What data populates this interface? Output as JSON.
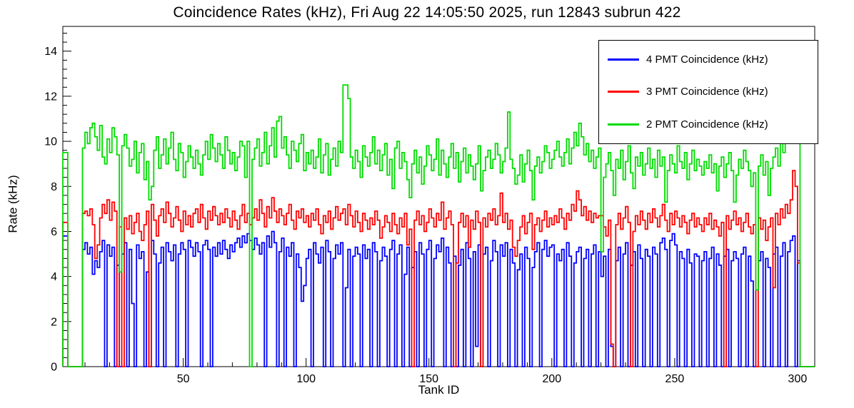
{
  "title": "Coincidence Rates (kHz), Fri Aug 22 14:05:50 2025, run 12843 subrun 422",
  "chart_data": {
    "type": "line",
    "subtype": "step-histogram",
    "title": "Coincidence Rates (kHz), Fri Aug 22 14:05:50 2025, run 12843 subrun 422",
    "xlabel": "Tank ID",
    "ylabel": "Rate (kHz)",
    "xlim": [
      1,
      307
    ],
    "ylim": [
      0,
      15.1
    ],
    "xticks_major": [
      50,
      100,
      150,
      200,
      250,
      300
    ],
    "xtick_minor_step": 10,
    "yticks_major": [
      0,
      2,
      4,
      6,
      8,
      10,
      12,
      14
    ],
    "ytick_minor_step": 0.4,
    "grid": false,
    "legend_position": "top-right",
    "frame_color": "#000000",
    "series": [
      {
        "key": "4pmt",
        "name": "4 PMT Coincidence (kHz)",
        "color": "#0000ff",
        "values": [
          5.8,
          5.8,
          0,
          0,
          0,
          0,
          0,
          0,
          5.2,
          5.5,
          5.0,
          5.3,
          4.1,
          4.7,
          4.4,
          5.1,
          5.6,
          0,
          5.4,
          4.9,
          5.3,
          0,
          4.5,
          0,
          5.0,
          5.5,
          0,
          5.2,
          2.8,
          0,
          5.4,
          4.8,
          5.1,
          0,
          4.2,
          0,
          5.6,
          5.0,
          0,
          4.6,
          5.3,
          0,
          5.5,
          5.1,
          4.7,
          5.4,
          0,
          5.0,
          5.5,
          5.2,
          0,
          5.6,
          5.3,
          4.9,
          5.5,
          5.1,
          0,
          5.4,
          5.6,
          5.2,
          0,
          5.3,
          4.9,
          5.5,
          5.0,
          5.6,
          5.2,
          4.8,
          5.4,
          5.1,
          5.5,
          5.7,
          5.3,
          5.8,
          5.5,
          5.9,
          5.6,
          5.2,
          5.7,
          5.4,
          5.0,
          5.5,
          0,
          5.8,
          5.3,
          6.0,
          5.5,
          0,
          5.1,
          5.7,
          0,
          5.3,
          4.9,
          5.5,
          0,
          5.0,
          4.4,
          2.9,
          3.6,
          4.8,
          5.2,
          0,
          5.5,
          5.0,
          4.6,
          5.3,
          0,
          5.6,
          5.1,
          0,
          4.8,
          5.4,
          5.0,
          5.5,
          0,
          3.5,
          5.2,
          0,
          4.9,
          5.3,
          5.0,
          0,
          5.4,
          4.8,
          5.2,
          0,
          5.5,
          5.1,
          0,
          4.7,
          5.3,
          4.9,
          0,
          5.2,
          5.6,
          0,
          5.0,
          5.4,
          0,
          4.1,
          5.3,
          0,
          4.4,
          5.1,
          0,
          5.5,
          5.0,
          0,
          5.2,
          5.6,
          0,
          4.8,
          5.4,
          5.1,
          5.7,
          0,
          5.3,
          4.6,
          0,
          4.9,
          0,
          4.5,
          5.2,
          0,
          5.5,
          4.8,
          0,
          5.1,
          0.9,
          5.4,
          0,
          5.0,
          5.3,
          0,
          4.7,
          5.6,
          5.1,
          0,
          5.4,
          4.9,
          5.5,
          0,
          5.2,
          4.6,
          0,
          4.3,
          5.0,
          0,
          5.3,
          4.8,
          0,
          4.4,
          5.1,
          5.5,
          0,
          5.2,
          5.6,
          4.9,
          5.3,
          5.4,
          0,
          5.0,
          4.7,
          5.2,
          0,
          5.5,
          4.9,
          0,
          4.6,
          5.1,
          5.3,
          0,
          4.8,
          5.2,
          0,
          5.0,
          5.4,
          0,
          5.1,
          4.0,
          4.9,
          0,
          5.2,
          0.9,
          0,
          4.7,
          5.3,
          0,
          5.0,
          5.5,
          0,
          4.5,
          5.1,
          0,
          5.4,
          4.8,
          0,
          5.2,
          4.9,
          0,
          5.3,
          5.0,
          0,
          5.5,
          5.7,
          5.2,
          0,
          5.6,
          5.9,
          5.4,
          0,
          5.1,
          4.8,
          0,
          5.2,
          4.6,
          0,
          5.0,
          4.9,
          0,
          4.7,
          5.1,
          0,
          4.8,
          5.3,
          0,
          5.0,
          4.5,
          0,
          4.9,
          5.2,
          0,
          4.7,
          5.1,
          4.8,
          0,
          5.0,
          5.3,
          0,
          4.9,
          3.8,
          0,
          3.4,
          4.7,
          5.1,
          0,
          4.8,
          4.4,
          0,
          5.0,
          5.3,
          0,
          4.9,
          5.5,
          0,
          5.1,
          5.6,
          5.8,
          0,
          4.7,
          0,
          0,
          0,
          0,
          0,
          0
        ]
      },
      {
        "key": "3pmt",
        "name": "3 PMT Coincidence (kHz)",
        "color": "#ff0000",
        "values": [
          6.4,
          6.4,
          0,
          0,
          0,
          0,
          0,
          0,
          6.8,
          6.9,
          6.7,
          7.0,
          6.3,
          4.8,
          5.4,
          6.6,
          7.2,
          6.8,
          7.4,
          6.5,
          7.3,
          6.9,
          0,
          6.2,
          0,
          6.6,
          6.1,
          6.7,
          5.9,
          6.4,
          6.8,
          6.0,
          5.6,
          6.3,
          6.9,
          0,
          7.2,
          6.5,
          5.8,
          6.7,
          7.0,
          6.4,
          7.3,
          6.8,
          6.2,
          6.6,
          7.1,
          6.5,
          6.0,
          6.9,
          6.3,
          6.7,
          6.2,
          6.8,
          7.0,
          6.4,
          7.2,
          6.6,
          6.1,
          6.9,
          6.5,
          7.1,
          6.7,
          6.3,
          6.8,
          6.4,
          7.0,
          6.6,
          6.2,
          6.9,
          6.5,
          6.1,
          6.7,
          7.2,
          6.4,
          6.8,
          6.3,
          6.6,
          7.0,
          6.5,
          7.4,
          6.8,
          6.2,
          7.1,
          6.6,
          7.5,
          6.9,
          6.4,
          7.0,
          6.7,
          6.3,
          6.8,
          7.2,
          6.5,
          6.1,
          6.9,
          6.6,
          7.0,
          6.4,
          6.7,
          6.2,
          6.8,
          6.5,
          7.0,
          6.3,
          5.9,
          6.7,
          6.4,
          6.9,
          6.1,
          6.6,
          7.1,
          6.5,
          6.8,
          7.0,
          6.3,
          7.2,
          6.7,
          6.2,
          6.9,
          6.4,
          6.0,
          6.8,
          6.5,
          6.1,
          6.6,
          6.3,
          6.9,
          6.5,
          5.7,
          6.2,
          6.7,
          6.4,
          6.0,
          6.8,
          6.3,
          5.9,
          6.6,
          6.2,
          6.8,
          5.4,
          6.1,
          0,
          6.5,
          6.9,
          6.3,
          6.7,
          6.0,
          6.4,
          7.0,
          6.6,
          6.2,
          6.8,
          6.5,
          7.3,
          6.1,
          6.6,
          6.9,
          6.3,
          0,
          4.6,
          6.4,
          6.8,
          6.2,
          6.7,
          5.3,
          6.5,
          6.1,
          6.9,
          6.4,
          0,
          6.6,
          6.2,
          6.8,
          6.5,
          7.0,
          6.3,
          6.7,
          7.7,
          6.4,
          6.8,
          6.1,
          6.5,
          5.3,
          4.9,
          5.6,
          6.2,
          6.7,
          5.9,
          6.4,
          6.8,
          5.2,
          6.3,
          6.6,
          6.0,
          6.5,
          6.9,
          6.2,
          6.6,
          6.3,
          6.7,
          6.4,
          7.0,
          6.6,
          6.1,
          6.8,
          6.5,
          7.2,
          6.9,
          7.8,
          7.4,
          6.7,
          7.1,
          6.5,
          6.9,
          6.4,
          6.8,
          6.6,
          6.7,
          6.7,
          6.2,
          5.8,
          6.5,
          1.0,
          0,
          6.3,
          6.8,
          6.1,
          6.6,
          7.1,
          6.4,
          0,
          6.0,
          6.7,
          6.3,
          6.9,
          6.5,
          6.1,
          6.8,
          6.4,
          7.0,
          6.6,
          6.2,
          6.7,
          7.2,
          6.5,
          6.0,
          6.8,
          6.3,
          6.9,
          6.6,
          6.2,
          6.7,
          6.4,
          5.9,
          6.5,
          6.8,
          6.2,
          6.6,
          6.3,
          6.0,
          6.6,
          6.3,
          6.8,
          6.1,
          6.5,
          6.2,
          5.8,
          6.4,
          0,
          6.7,
          6.1,
          6.5,
          6.9,
          6.3,
          6.6,
          6.0,
          6.4,
          6.8,
          6.2,
          5.9,
          6.3,
          0,
          6.6,
          6.1,
          6.5,
          5.6,
          6.2,
          6.6,
          3.5,
          6.8,
          6.3,
          7.0,
          6.6,
          7.2,
          6.8,
          7.4,
          8.7,
          8.0,
          4.6,
          0,
          0,
          0,
          0,
          0,
          0
        ]
      },
      {
        "key": "2pmt",
        "name": "2 PMT Coincidence (kHz)",
        "color": "#00dc00",
        "values": [
          9.5,
          9.5,
          0,
          0,
          0,
          0,
          0,
          0,
          9.7,
          10.4,
          9.9,
          10.6,
          10.8,
          10.2,
          9.6,
          10.7,
          9.3,
          9.0,
          10.1,
          9.5,
          10.6,
          10.2,
          9.4,
          4.2,
          9.8,
          10.3,
          9.7,
          8.9,
          9.2,
          10.0,
          8.6,
          9.5,
          9.9,
          8.3,
          9.1,
          7.4,
          8.0,
          9.6,
          10.2,
          8.8,
          9.4,
          10.1,
          9.0,
          9.7,
          10.4,
          9.2,
          8.7,
          9.9,
          9.5,
          8.4,
          9.1,
          9.8,
          9.3,
          8.8,
          9.6,
          9.0,
          8.5,
          9.4,
          10.0,
          9.2,
          10.3,
          9.7,
          9.1,
          9.9,
          9.4,
          8.8,
          10.2,
          9.6,
          9.0,
          9.5,
          8.7,
          9.3,
          10.0,
          9.8,
          8.4,
          10.0,
          0,
          9.2,
          9.7,
          10.1,
          8.9,
          9.5,
          10.4,
          9.0,
          9.8,
          10.6,
          9.3,
          10.9,
          11.1,
          9.7,
          10.2,
          9.4,
          8.8,
          10.0,
          9.6,
          9.1,
          9.9,
          10.3,
          8.7,
          9.5,
          9.0,
          9.6,
          8.8,
          9.3,
          10.1,
          8.6,
          9.4,
          9.9,
          8.5,
          9.2,
          9.7,
          8.9,
          10.0,
          9.5,
          12.5,
          12.5,
          11.9,
          9.3,
          8.8,
          9.6,
          9.1,
          8.4,
          9.8,
          9.3,
          8.9,
          9.5,
          10.2,
          9.0,
          9.6,
          8.7,
          9.4,
          9.9,
          8.5,
          9.2,
          7.9,
          9.7,
          10.0,
          8.8,
          9.5,
          9.1,
          8.3,
          7.5,
          9.0,
          9.6,
          8.6,
          9.3,
          8.1,
          8.9,
          9.8,
          9.4,
          8.7,
          9.2,
          10.1,
          8.5,
          9.6,
          9.0,
          8.4,
          9.3,
          9.9,
          8.8,
          9.5,
          8.2,
          9.1,
          9.7,
          8.6,
          9.4,
          8.9,
          8.3,
          9.0,
          9.8,
          7.8,
          8.7,
          9.3,
          9.6,
          8.8,
          9.2,
          9.9,
          9.4,
          8.6,
          9.1,
          9.7,
          11.3,
          9.2,
          8.8,
          8.1,
          8.5,
          9.4,
          8.2,
          9.0,
          9.6,
          8.7,
          7.4,
          8.9,
          9.3,
          8.6,
          9.1,
          9.8,
          9.5,
          8.8,
          9.2,
          9.6,
          10.0,
          9.3,
          8.9,
          9.5,
          10.1,
          9.0,
          9.7,
          10.4,
          9.8,
          10.8,
          10.2,
          9.4,
          9.9,
          9.1,
          9.6,
          8.8,
          9.3,
          9.7,
          5.1,
          8.4,
          9.0,
          9.5,
          8.7,
          7.6,
          9.2,
          8.8,
          9.6,
          8.3,
          9.1,
          9.8,
          8.6,
          7.9,
          9.3,
          8.9,
          9.5,
          8.5,
          9.0,
          9.7,
          8.8,
          9.2,
          8.4,
          9.6,
          8.9,
          9.3,
          7.3,
          8.7,
          9.4,
          9.0,
          8.6,
          9.8,
          9.1,
          8.8,
          9.5,
          8.3,
          9.0,
          9.6,
          8.7,
          9.2,
          8.9,
          8.5,
          9.1,
          8.8,
          9.4,
          8.6,
          9.0,
          7.8,
          8.9,
          9.3,
          8.4,
          9.0,
          9.5,
          8.7,
          7.3,
          8.5,
          9.2,
          8.8,
          9.6,
          9.1,
          8.7,
          8.0,
          8.6,
          3.4,
          8.9,
          9.4,
          8.5,
          9.1,
          7.6,
          8.8,
          9.3,
          9.7,
          8.9,
          10.2,
          9.5,
          10.6,
          10.0,
          10.4,
          10.9,
          11.1,
          10.5,
          0,
          0,
          0,
          0,
          0,
          0
        ]
      }
    ]
  },
  "legend": {
    "entries": [
      "4 PMT Coincidence (kHz)",
      "3 PMT Coincidence (kHz)",
      "2 PMT Coincidence (kHz)"
    ]
  }
}
